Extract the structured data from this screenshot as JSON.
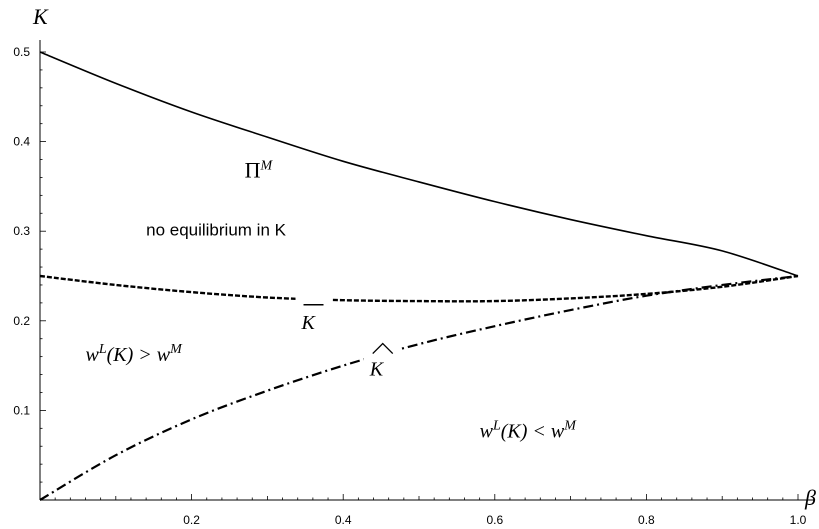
{
  "chart_data": {
    "type": "line",
    "xlabel": "β",
    "ylabel": "K",
    "xlim": [
      0,
      1.0
    ],
    "ylim": [
      0,
      0.5
    ],
    "x_ticks": [
      0.2,
      0.4,
      0.6,
      0.8,
      1.0
    ],
    "x_tick_labels": [
      "0.2",
      "0.4",
      "0.6",
      "0.8",
      "1.0"
    ],
    "y_ticks": [
      0.1,
      0.2,
      0.3,
      0.4,
      0.5
    ],
    "y_tick_labels": [
      "0.1",
      "0.2",
      "0.3",
      "0.4",
      "0.5"
    ],
    "grid": false,
    "series": [
      {
        "name": "Π^M",
        "style": "solid",
        "x": [
          0,
          0.1,
          0.2,
          0.3,
          0.4,
          0.5,
          0.6,
          0.7,
          0.8,
          0.9,
          1.0
        ],
        "y": [
          0.5,
          0.465,
          0.433,
          0.405,
          0.378,
          0.355,
          0.333,
          0.313,
          0.295,
          0.278,
          0.25
        ]
      },
      {
        "name": "K̄",
        "style": "dashed",
        "x": [
          0,
          0.1,
          0.2,
          0.3,
          0.4,
          0.5,
          0.6,
          0.7,
          0.8,
          0.9,
          1.0
        ],
        "y": [
          0.25,
          0.24,
          0.232,
          0.226,
          0.223,
          0.222,
          0.222,
          0.225,
          0.23,
          0.238,
          0.25
        ]
      },
      {
        "name": "K̂",
        "style": "dashdot",
        "x": [
          0,
          0.1,
          0.2,
          0.3,
          0.4,
          0.5,
          0.6,
          0.7,
          0.8,
          0.9,
          1.0
        ],
        "y": [
          0.0,
          0.05,
          0.09,
          0.122,
          0.15,
          0.174,
          0.194,
          0.212,
          0.228,
          0.24,
          0.25
        ]
      }
    ],
    "annotations": [
      {
        "id": "pi",
        "text": "Π",
        "sup": "M",
        "x": 0.27,
        "y": 0.36
      },
      {
        "id": "no_eq",
        "text": "no equilibrium in K",
        "x": 0.14,
        "y": 0.295
      },
      {
        "id": "kbar",
        "text": "K",
        "x": 0.345,
        "y": 0.2
      },
      {
        "id": "khat",
        "text": "K",
        "x": 0.435,
        "y": 0.15
      },
      {
        "id": "wl_gt",
        "text_parts": [
          "w",
          "L",
          "(K) > w",
          "M"
        ],
        "x": 0.06,
        "y": 0.155
      },
      {
        "id": "wl_lt",
        "text_parts": [
          "w",
          "L",
          "(K) < w",
          "M"
        ],
        "x": 0.58,
        "y": 0.07
      }
    ]
  }
}
